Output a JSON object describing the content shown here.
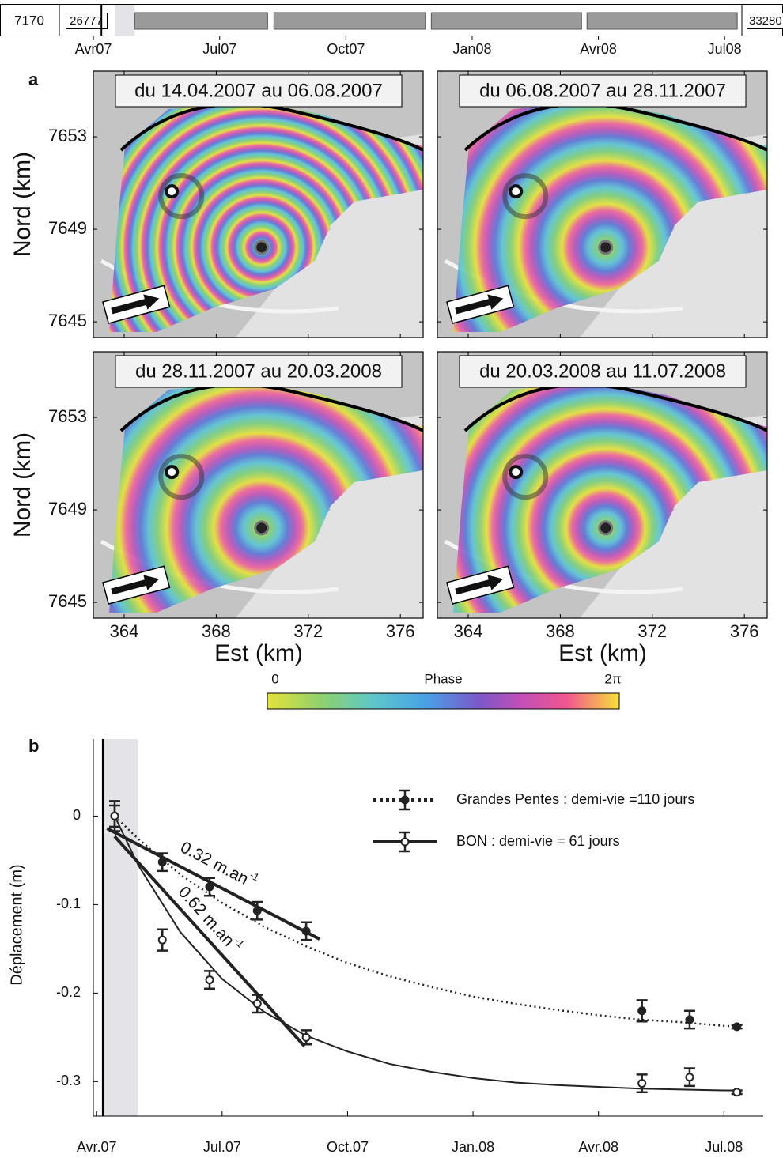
{
  "panel_labels": [
    "a",
    "b"
  ],
  "chart_data": [
    {
      "type": "timeline",
      "labels": [
        "7170",
        "26777",
        "33280"
      ],
      "xlim": [
        -0.81,
        15.41
      ],
      "xticks": [
        {
          "value": 0,
          "label": "Avr07"
        },
        {
          "value": 3,
          "label": "Jul07"
        },
        {
          "value": 6,
          "label": "Oct07"
        },
        {
          "value": 9,
          "label": "Jan08"
        },
        {
          "value": 12,
          "label": "Avr08"
        },
        {
          "value": 15,
          "label": "Jul08"
        }
      ],
      "intervals": [
        [
          0.98,
          4.14
        ],
        [
          4.29,
          7.89
        ],
        [
          8.03,
          11.6
        ],
        [
          11.73,
          15.3
        ]
      ],
      "event_x": 0.19,
      "shaded_span": [
        0.51,
        0.98
      ],
      "color": "#9a9a9a"
    },
    {
      "type": "map",
      "titles": [
        "du 14.04.2007 au 06.08.2007",
        "du 06.08.2007 au 28.11.2007",
        "du 28.11.2007 au 20.03.2008",
        "du 20.03.2008 au 11.07.2008"
      ],
      "xlabel": "Est (km)",
      "ylabel": "Nord (km)",
      "xlim": [
        362.66,
        376.99
      ],
      "ylim": [
        7644.32,
        7655.84
      ],
      "xticks": [
        364,
        368,
        372,
        376
      ],
      "yticks": [
        7645,
        7649,
        7653
      ],
      "site_x": [
        366.07,
        369.97
      ],
      "site_y": [
        7650.64,
        7648.22
      ]
    },
    {
      "type": "colorbar",
      "title": "Phase",
      "lim": [
        0,
        6.2832
      ],
      "ticks": [
        0,
        {
          "value": 6.2832,
          "label": "2π"
        }
      ]
    },
    {
      "type": "line",
      "ylabel": "Déplacement (m)",
      "xlim": [
        -0.08,
        15.94
      ],
      "ylim": [
        -0.339,
        0.087
      ],
      "xticks": [
        {
          "value": 0,
          "label": "Avr.07"
        },
        {
          "value": 3,
          "label": "Jul.07"
        },
        {
          "value": 6,
          "label": "Oct.07"
        },
        {
          "value": 9,
          "label": "Jan.08"
        },
        {
          "value": 12,
          "label": "Avr.08"
        },
        {
          "value": 15,
          "label": "Jul.08"
        }
      ],
      "yticks": [
        -0.3,
        -0.2,
        -0.1,
        0
      ],
      "event_x": 0.15,
      "shaded_span": [
        0.15,
        0.98
      ],
      "series": [
        {
          "name": "Grandes Pentes : demi-vie =110 jours",
          "color": "#222222",
          "line_style": "dotted",
          "marker": "filled",
          "x": [
            0.43,
            1.57,
            2.7,
            3.84,
            5.01,
            13.04,
            14.18,
            15.31
          ],
          "values": [
            0,
            -0.052,
            -0.08,
            -0.107,
            -0.13,
            -0.22,
            -0.23,
            -0.238
          ],
          "errors": [
            0.012,
            0.01,
            0.01,
            0.01,
            0.01,
            0.012,
            0.01,
            0.002
          ],
          "fit_x": [
            0.43,
            1,
            2,
            3,
            4,
            5,
            6,
            7,
            8,
            9,
            10,
            11,
            12,
            13,
            14,
            15,
            15.4
          ],
          "fit_values": [
            0,
            -0.026,
            -0.066,
            -0.098,
            -0.125,
            -0.147,
            -0.166,
            -0.181,
            -0.193,
            -0.204,
            -0.212,
            -0.219,
            -0.225,
            -0.23,
            -0.233,
            -0.237,
            -0.238
          ]
        },
        {
          "name": "BON : demi-vie = 61 jours",
          "color": "#222222",
          "line_style": "solid",
          "marker": "open",
          "x": [
            0.43,
            1.57,
            2.7,
            3.84,
            5.01,
            13.04,
            14.18,
            15.31
          ],
          "values": [
            0,
            -0.14,
            -0.185,
            -0.212,
            -0.25,
            -0.302,
            -0.295,
            -0.312
          ],
          "errors": [
            0.017,
            0.012,
            0.01,
            0.01,
            0.008,
            0.01,
            0.01,
            0.002
          ],
          "fit_x": [
            0.43,
            1,
            2,
            3,
            4,
            5,
            6,
            7,
            8,
            9,
            10,
            11,
            12,
            13,
            14,
            15,
            15.4
          ],
          "fit_values": [
            0,
            -0.056,
            -0.131,
            -0.184,
            -0.221,
            -0.248,
            -0.266,
            -0.28,
            -0.289,
            -0.296,
            -0.301,
            -0.304,
            -0.306,
            -0.308,
            -0.309,
            -0.31,
            -0.31
          ]
        }
      ],
      "annotations": [
        {
          "text": "0.32 m.an",
          "superscript": "-1",
          "x": [
            0.25,
            5.33
          ],
          "y": [
            -0.014,
            -0.139
          ]
        },
        {
          "text": "0.62 m.an",
          "superscript": "-1",
          "x": [
            0.43,
            4.97
          ],
          "y": [
            -0.023,
            -0.26
          ]
        }
      ]
    }
  ]
}
